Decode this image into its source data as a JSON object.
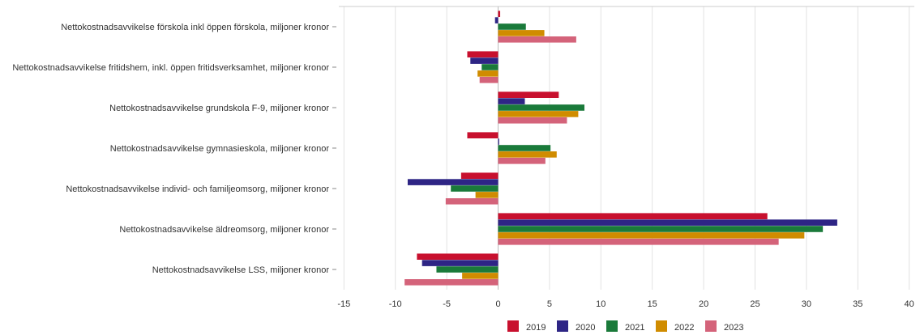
{
  "chart_data": {
    "type": "bar",
    "orientation": "horizontal",
    "categories": [
      "Nettokostnadsavvikelse förskola inkl öppen förskola, miljoner kronor",
      "Nettokostnadsavvikelse fritidshem, inkl. öppen fritidsverksamhet, miljoner kronor",
      "Nettokostnadsavvikelse grundskola F-9, miljoner kronor",
      "Nettokostnadsavvikelse gymnasieskola, miljoner kronor",
      "Nettokostnadsavvikelse individ- och familjeomsorg, miljoner kronor",
      "Nettokostnadsavvikelse äldreomsorg, miljoner kronor",
      "Nettokostnadsavvikelse LSS, miljoner kronor"
    ],
    "series": [
      {
        "name": "2019",
        "color": "#c8102e",
        "values": [
          0.2,
          -3.0,
          5.9,
          -3.0,
          -3.6,
          26.2,
          -7.9
        ]
      },
      {
        "name": "2020",
        "color": "#2e2585",
        "values": [
          -0.3,
          -2.7,
          2.6,
          0.1,
          -8.8,
          33.0,
          -7.4
        ]
      },
      {
        "name": "2021",
        "color": "#1a7a3a",
        "values": [
          2.7,
          -1.6,
          8.4,
          5.1,
          -4.6,
          31.6,
          -6.0
        ]
      },
      {
        "name": "2022",
        "color": "#d08c00",
        "values": [
          4.5,
          -2.0,
          7.8,
          5.7,
          -2.2,
          29.8,
          -3.5
        ]
      },
      {
        "name": "2023",
        "color": "#d4637a",
        "values": [
          7.6,
          -1.8,
          6.7,
          4.6,
          -5.1,
          27.3,
          -9.1
        ]
      }
    ],
    "xticks": [
      -15,
      -10,
      -5,
      0,
      5,
      10,
      15,
      20,
      25,
      30,
      35,
      40
    ],
    "xlim": [
      -15.5,
      40.5
    ],
    "grid": true,
    "legend_position": "bottom"
  }
}
